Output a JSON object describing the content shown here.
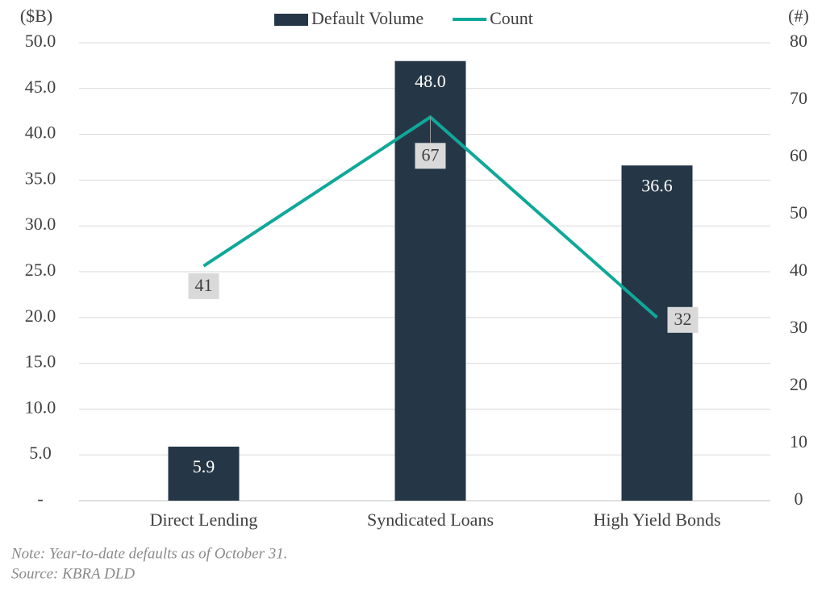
{
  "chart_data": {
    "type": "bar-line",
    "y_axis_label": "($B)",
    "y2_axis_label": "(#)",
    "categories": [
      "Direct Lending",
      "Syndicated Loans",
      "High Yield Bonds"
    ],
    "series": [
      {
        "name": "Default Volume",
        "type": "bar",
        "color": "#253746",
        "values": [
          5.9,
          48.0,
          36.6
        ],
        "value_labels": [
          "5.9",
          "48.0",
          "36.6"
        ]
      },
      {
        "name": "Count",
        "type": "line",
        "axis": "y2",
        "color": "#0fa898",
        "values": [
          41,
          67,
          32
        ]
      }
    ],
    "ylim": [
      0,
      50
    ],
    "yticks": [
      {
        "value": 0,
        "label": "-"
      },
      {
        "value": 5,
        "label": "5.0"
      },
      {
        "value": 10,
        "label": "10.0"
      },
      {
        "value": 15,
        "label": "15.0"
      },
      {
        "value": 20,
        "label": "20.0"
      },
      {
        "value": 25,
        "label": "25.0"
      },
      {
        "value": 30,
        "label": "30.0"
      },
      {
        "value": 35,
        "label": "35.0"
      },
      {
        "value": 40,
        "label": "40.0"
      },
      {
        "value": 45,
        "label": "45.0"
      },
      {
        "value": 50,
        "label": "50.0"
      }
    ],
    "y2lim": [
      0,
      80
    ],
    "y2ticks": [
      0,
      10,
      20,
      30,
      40,
      50,
      60,
      70,
      80
    ],
    "grid": true,
    "legend": "top",
    "notes": [
      "Note: Year-to-date defaults as of October 31.",
      "Source: KBRA DLD"
    ]
  }
}
